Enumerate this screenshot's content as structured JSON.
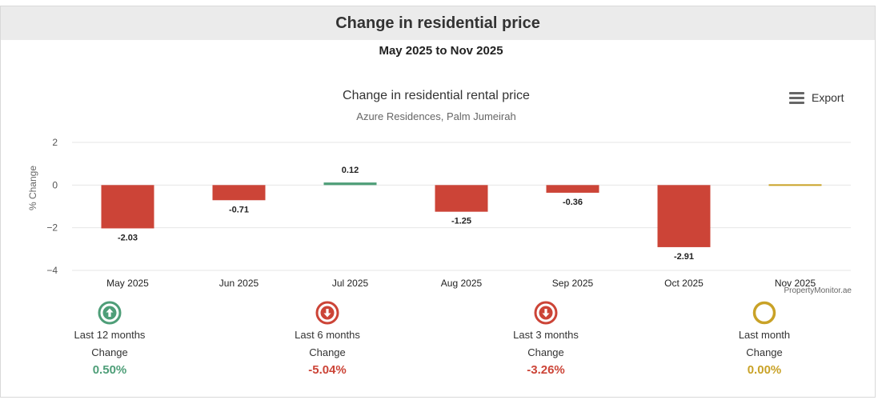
{
  "header": {
    "title": "Change in residential price"
  },
  "period_label": "May 2025 to Nov 2025",
  "export": {
    "label": "Export",
    "icon": "menu-icon"
  },
  "credit": "PropertyMonitor.ae",
  "colors": {
    "negative": "#cc4437",
    "positive": "#4e9e78",
    "neutral": "#c9a227",
    "grid": "#e6e6e6"
  },
  "chart_data": {
    "type": "bar",
    "title": "Change in residential rental price",
    "subtitle": "Azure Residences, Palm Jumeirah",
    "xlabel": "",
    "ylabel": "% Change",
    "categories": [
      "May 2025",
      "Jun 2025",
      "Jul 2025",
      "Aug 2025",
      "Sep 2025",
      "Oct 2025",
      "Nov 2025"
    ],
    "values": [
      -2.03,
      -0.71,
      0.12,
      -1.25,
      -0.36,
      -2.91,
      0.0
    ],
    "data_labels": [
      "-2.03",
      "-0.71",
      "0.12",
      "-1.25",
      "-0.36",
      "-2.91",
      ""
    ],
    "yticks": [
      2,
      0,
      -2,
      -4
    ],
    "ytick_labels": [
      "2",
      "0",
      "−2",
      "−4"
    ],
    "ylim": [
      -4,
      2
    ],
    "grid": true,
    "legend": "none"
  },
  "stats": [
    {
      "label": "Last 12 months",
      "sub": "Change",
      "value": "0.50%",
      "direction": "up",
      "icon": "arrow-up-circle-icon"
    },
    {
      "label": "Last 6 months",
      "sub": "Change",
      "value": "-5.04%",
      "direction": "down",
      "icon": "arrow-down-circle-icon"
    },
    {
      "label": "Last 3 months",
      "sub": "Change",
      "value": "-3.26%",
      "direction": "down",
      "icon": "arrow-down-circle-icon"
    },
    {
      "label": "Last month",
      "sub": "Change",
      "value": "0.00%",
      "direction": "flat",
      "icon": "circle-icon"
    }
  ]
}
